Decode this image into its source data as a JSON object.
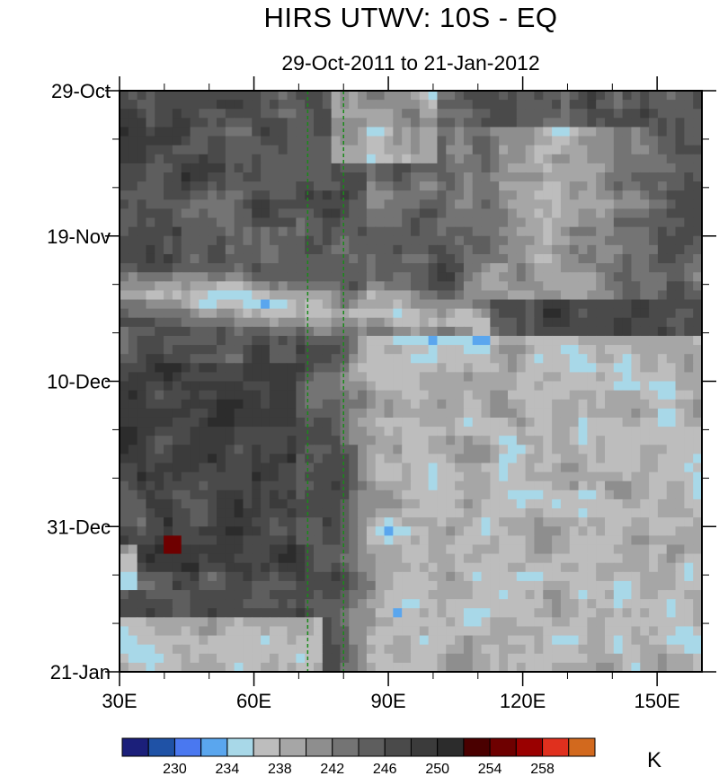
{
  "title": "HIRS UTWV: 10S - EQ",
  "subtitle": "29-Oct-2011 to 21-Jan-2012",
  "chart_data": {
    "type": "heatmap",
    "description_of_axes": "Hovmoller: longitude (x) vs time (y, top to bottom)",
    "x_range": [
      30,
      160
    ],
    "x_ticks": [
      {
        "value": 30,
        "label": "30E"
      },
      {
        "value": 60,
        "label": "60E"
      },
      {
        "value": 90,
        "label": "90E"
      },
      {
        "value": 120,
        "label": "120E"
      },
      {
        "value": 150,
        "label": "150E"
      }
    ],
    "y_range": [
      "2011-10-29",
      "2012-01-21"
    ],
    "y_ticks": [
      {
        "value": 0,
        "label": "29-Oct"
      },
      {
        "value": 21,
        "label": "19-Nov"
      },
      {
        "value": 42,
        "label": "10-Dec"
      },
      {
        "value": 63,
        "label": "31-Dec"
      },
      {
        "value": 84,
        "label": "21-Jan"
      }
    ],
    "reference_lines_lon": [
      72,
      80
    ],
    "colorbar": {
      "unit": "K",
      "levels": [
        228,
        230,
        232,
        234,
        236,
        238,
        240,
        242,
        244,
        246,
        248,
        250,
        252,
        254,
        256,
        258
      ],
      "labels": [
        "230",
        "234",
        "238",
        "242",
        "246",
        "250",
        "254",
        "258"
      ],
      "colors": [
        "#1b1f7a",
        "#1f52a6",
        "#4a78f0",
        "#5aa6ee",
        "#a8d8e8",
        "#bdbdbd",
        "#a6a6a6",
        "#8e8e8e",
        "#747474",
        "#5e5e5e",
        "#4a4a4a",
        "#3b3b3b",
        "#2c2c2c",
        "#4a0000",
        "#6e0000",
        "#9a0000",
        "#e0301e",
        "#d2691e"
      ]
    },
    "features": [
      {
        "name": "eastward-moist-band",
        "lon_start": 30,
        "lon_end": 110,
        "day_start": 28,
        "day_end": 36,
        "value": 234
      },
      {
        "name": "moist-region-east",
        "lon_start": 78,
        "lon_end": 160,
        "day_start": 35,
        "day_end": 84,
        "value": 236
      },
      {
        "name": "dry-west",
        "lon_start": 30,
        "lon_end": 75,
        "day_start": 0,
        "day_end": 84,
        "value": 248
      },
      {
        "name": "max-dry-spot",
        "lon": 42,
        "day": 66,
        "value": 254
      }
    ]
  }
}
